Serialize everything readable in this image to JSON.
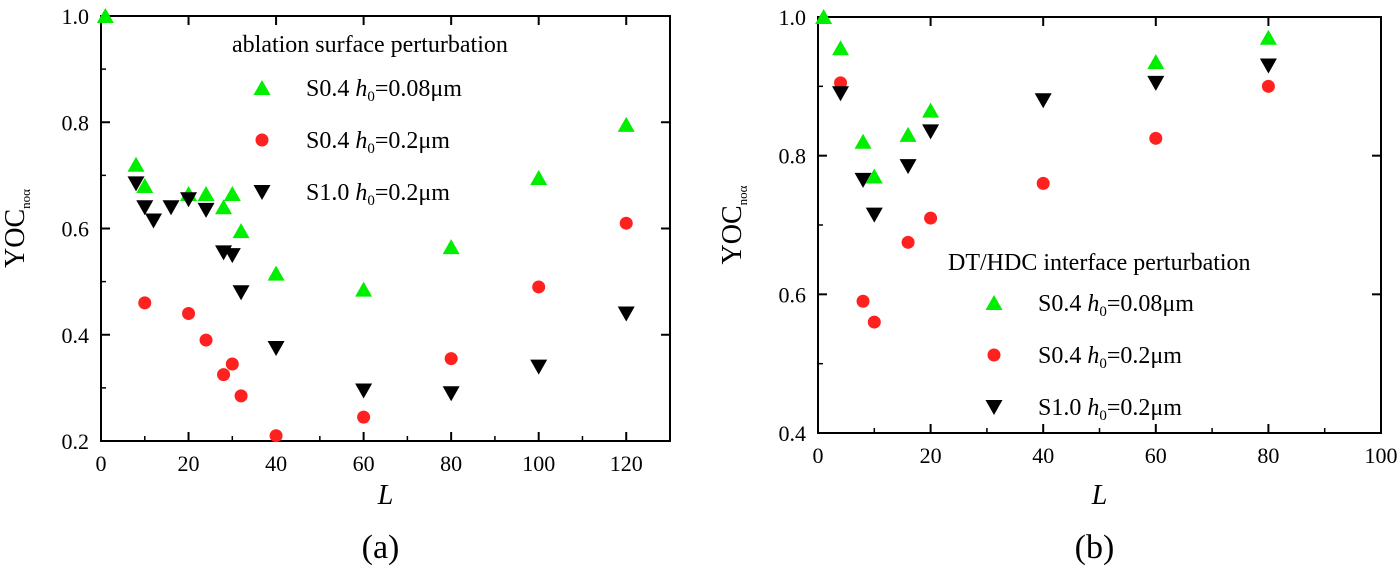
{
  "chart_data": [
    {
      "type": "scatter",
      "panel_label": "(a)",
      "xlabel": "L",
      "ylabel_main": "YOC",
      "ylabel_sub": "noα",
      "xlim": [
        0,
        130
      ],
      "ylim": [
        0.2,
        1.0
      ],
      "xticks": [
        0,
        20,
        40,
        60,
        80,
        100,
        120
      ],
      "yticks": [
        0.2,
        0.4,
        0.6,
        0.8,
        1.0
      ],
      "xtick_labels": [
        "0",
        "20",
        "40",
        "60",
        "80",
        "100",
        "120"
      ],
      "ytick_labels": [
        "0.2",
        "0.4",
        "0.6",
        "0.8",
        "1.0"
      ],
      "legend_title": "ablation surface perturbation",
      "legend_position": "top-right",
      "series": [
        {
          "name": "S0.4 h0=0.08μm",
          "label_main": "S0.4 ",
          "label_h": "h",
          "label_sub": "0",
          "label_rest": "=0.08μm",
          "color": "#00ee00",
          "marker": "triangle-up",
          "x": [
            1,
            8,
            10,
            20,
            24,
            28,
            30,
            32,
            40,
            60,
            80,
            100,
            120
          ],
          "y": [
            1.0,
            0.72,
            0.68,
            0.665,
            0.665,
            0.64,
            0.665,
            0.595,
            0.515,
            0.485,
            0.565,
            0.695,
            0.795
          ]
        },
        {
          "name": "S0.4 h0=0.2μm",
          "label_main": "S0.4 ",
          "label_h": "h",
          "label_sub": "0",
          "label_rest": "=0.2μm",
          "color": "#ff2020",
          "marker": "circle",
          "x": [
            10,
            20,
            24,
            28,
            30,
            32,
            40,
            60,
            80,
            100,
            120
          ],
          "y": [
            0.46,
            0.44,
            0.39,
            0.325,
            0.345,
            0.285,
            0.21,
            0.245,
            0.355,
            0.49,
            0.61
          ]
        },
        {
          "name": "S1.0 h0=0.2μm",
          "label_main": "S1.0 ",
          "label_h": "h",
          "label_sub": "0",
          "label_rest": "=0.2μm",
          "color": "#000000",
          "marker": "triangle-down",
          "x": [
            8,
            10,
            12,
            16,
            20,
            24,
            28,
            30,
            32,
            40,
            60,
            80,
            100,
            120
          ],
          "y": [
            0.685,
            0.64,
            0.615,
            0.64,
            0.655,
            0.635,
            0.555,
            0.55,
            0.48,
            0.375,
            0.295,
            0.29,
            0.34,
            0.44
          ]
        }
      ]
    },
    {
      "type": "scatter",
      "panel_label": "(b)",
      "xlabel": "L",
      "ylabel_main": "YOC",
      "ylabel_sub": "noα",
      "xlim": [
        0,
        100
      ],
      "ylim": [
        0.4,
        1.0
      ],
      "xticks": [
        0,
        20,
        40,
        60,
        80,
        100
      ],
      "yticks": [
        0.4,
        0.6,
        0.8,
        1.0
      ],
      "xtick_labels": [
        "0",
        "20",
        "40",
        "60",
        "80",
        "100"
      ],
      "ytick_labels": [
        "0.4",
        "0.6",
        "0.8",
        "1.0"
      ],
      "legend_title": "DT/HDC interface perturbation",
      "legend_position": "right",
      "series": [
        {
          "name": "S0.4 h0=0.08μm",
          "label_main": "S0.4 ",
          "label_h": "h",
          "label_sub": "0",
          "label_rest": "=0.08μm",
          "color": "#00ee00",
          "marker": "triangle-up",
          "x": [
            1,
            4,
            8,
            10,
            16,
            20,
            60,
            80
          ],
          "y": [
            1.0,
            0.955,
            0.82,
            0.77,
            0.83,
            0.865,
            0.935,
            0.97
          ]
        },
        {
          "name": "S0.4 h0=0.2μm",
          "label_main": "S0.4 ",
          "label_h": "h",
          "label_sub": "0",
          "label_rest": "=0.2μm",
          "color": "#ff2020",
          "marker": "circle",
          "x": [
            4,
            8,
            10,
            16,
            20,
            40,
            60,
            80
          ],
          "y": [
            0.905,
            0.59,
            0.56,
            0.675,
            0.71,
            0.76,
            0.825,
            0.9
          ]
        },
        {
          "name": "S1.0 h0=0.2μm",
          "label_main": "S1.0 ",
          "label_h": "h",
          "label_sub": "0",
          "label_rest": "=0.2μm",
          "color": "#000000",
          "marker": "triangle-down",
          "x": [
            4,
            8,
            10,
            16,
            20,
            40,
            60,
            80
          ],
          "y": [
            0.89,
            0.765,
            0.715,
            0.785,
            0.835,
            0.88,
            0.905,
            0.93
          ]
        }
      ]
    }
  ]
}
